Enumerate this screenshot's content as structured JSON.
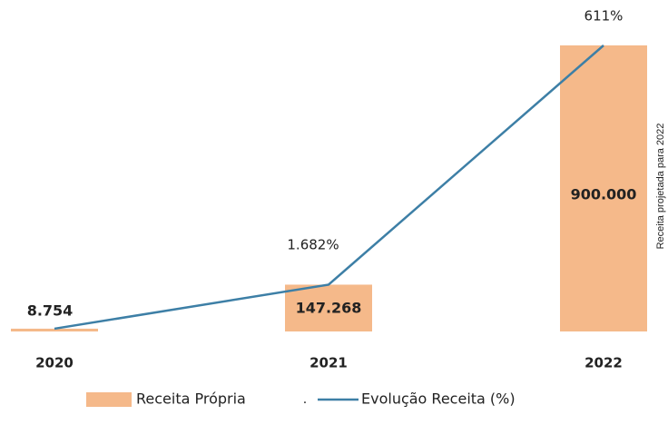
{
  "chart_data": {
    "type": "bar_line",
    "categories": [
      "2020",
      "2021",
      "2022"
    ],
    "ylim": [
      0,
      900000
    ],
    "series": [
      {
        "name": "Receita Própria",
        "color": "#f5b98a",
        "values": [
          8754,
          147268,
          900000
        ],
        "value_labels": [
          "8.754",
          "147.268",
          "900.000"
        ]
      },
      {
        "name": "Evolução Receita (%)",
        "color": "#3d7fa6",
        "values": [
          null,
          1682,
          611
        ],
        "value_labels": [
          null,
          "1.682%",
          "611%"
        ]
      }
    ],
    "legend_separator": ".",
    "annotation": "Receita projetada para 2022"
  }
}
